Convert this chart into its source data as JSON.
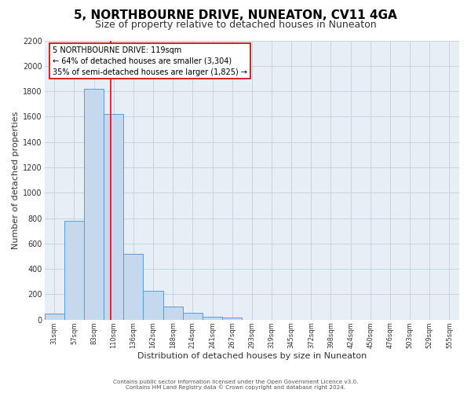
{
  "title": "5, NORTHBOURNE DRIVE, NUNEATON, CV11 4GA",
  "subtitle": "Size of property relative to detached houses in Nuneaton",
  "xlabel": "Distribution of detached houses by size in Nuneaton",
  "ylabel": "Number of detached properties",
  "bar_labels": [
    "31sqm",
    "57sqm",
    "83sqm",
    "110sqm",
    "136sqm",
    "162sqm",
    "188sqm",
    "214sqm",
    "241sqm",
    "267sqm",
    "293sqm",
    "319sqm",
    "345sqm",
    "372sqm",
    "398sqm",
    "424sqm",
    "450sqm",
    "476sqm",
    "503sqm",
    "529sqm",
    "555sqm"
  ],
  "bar_values": [
    50,
    780,
    1820,
    1620,
    520,
    230,
    105,
    55,
    25,
    15,
    0,
    0,
    0,
    0,
    0,
    0,
    0,
    0,
    0,
    0,
    0
  ],
  "bar_color": "#c5d8ed",
  "bar_edge_color": "#5b9bd5",
  "ylim": [
    0,
    2200
  ],
  "yticks": [
    0,
    200,
    400,
    600,
    800,
    1000,
    1200,
    1400,
    1600,
    1800,
    2000,
    2200
  ],
  "annotation_line1": "5 NORTHBOURNE DRIVE: 119sqm",
  "annotation_line2": "← 64% of detached houses are smaller (3,304)",
  "annotation_line3": "35% of semi-detached houses are larger (1,825) →",
  "annotation_box_edge": "#cc0000",
  "footer1": "Contains HM Land Registry data © Crown copyright and database right 2024.",
  "footer2": "Contains public sector information licensed under the Open Government Licence v3.0.",
  "bg_color": "#ffffff",
  "plot_bg_color": "#e8eef5",
  "grid_color": "#c8d4e0",
  "title_fontsize": 11,
  "subtitle_fontsize": 9
}
